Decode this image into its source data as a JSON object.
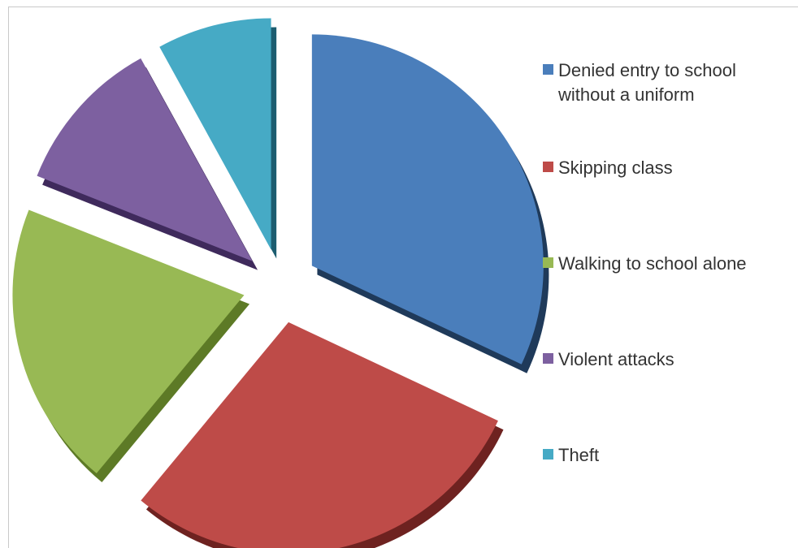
{
  "chart_data": {
    "type": "pie",
    "exploded": true,
    "three_d": true,
    "legend_position": "right",
    "slices": [
      {
        "label": "Denied entry to school without a uniform",
        "value": 32,
        "color": "#4a7ebb",
        "side_color": "#1f3a5a"
      },
      {
        "label": "Skipping class",
        "value": 29,
        "color": "#be4b48",
        "side_color": "#6e2220"
      },
      {
        "label": "Walking to school alone",
        "value": 20,
        "color": "#98b954",
        "side_color": "#5d7a26"
      },
      {
        "label": "Violent attacks",
        "value": 11,
        "color": "#7d60a0",
        "side_color": "#3f2a5c"
      },
      {
        "label": "Theft",
        "value": 8,
        "color": "#46aac5",
        "side_color": "#1c5d70"
      }
    ]
  }
}
